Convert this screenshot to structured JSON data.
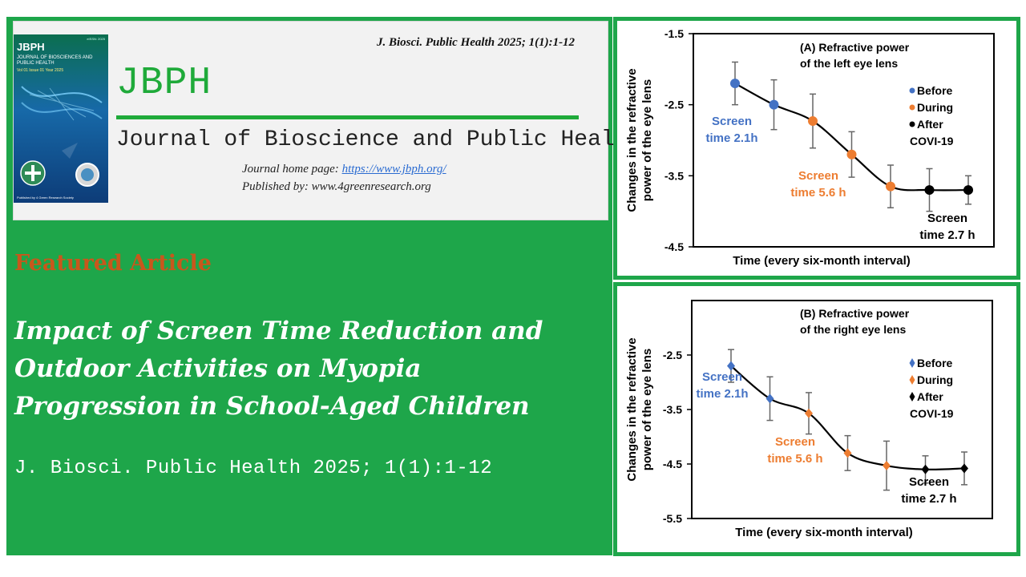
{
  "header": {
    "citation": "J. Biosci. Public Health 2025; 1(1):1-12",
    "logo_text": "JBPH",
    "journal_name": "Journal of Bioscience and Public Health",
    "homepage_label": "Journal home page: ",
    "homepage_url": "https://www.jbph.org/",
    "publisher": "Published by: www.4greenresearch.org",
    "cover": {
      "title": "JBPH",
      "subtitle": "JOURNAL OF BIOSCIENCES AND PUBLIC HEALTH",
      "issue": "Vol 01 Issue 01 Year 2025",
      "issn": "eISSN: 2025",
      "publisher": "Published by 4 Green Research Society"
    }
  },
  "article": {
    "featured_label": "Featured Article",
    "title_lines": [
      "Impact of Screen Time Reduction and",
      "Outdoor Activities on Myopia",
      "Progression in School-Aged Children"
    ],
    "citation": "J. Biosci. Public Health 2025; 1(1):1-12"
  },
  "colors": {
    "panel_green": "#1ea64a",
    "logo_green": "#1faa3a",
    "featured_orange": "#c8571c",
    "before_blue": "#4472c4",
    "during_orange": "#ed7d31",
    "after_black": "#000000"
  },
  "chart_data": [
    {
      "type": "line",
      "marker": "circle",
      "title_lines": [
        "(A) Refractive power",
        "of the left eye lens"
      ],
      "xlabel": "Time (every six-month interval)",
      "ylabel_lines": [
        "Changes in the refractive",
        "power of the eye lens"
      ],
      "ylim": [
        -4.5,
        -1.5
      ],
      "yticks": [
        -1.5,
        -2.5,
        -3.5,
        -4.5
      ],
      "x": [
        1,
        2,
        3,
        4,
        5,
        6,
        7
      ],
      "series": [
        {
          "values": [
            -2.2,
            -2.5,
            -2.73,
            -3.2,
            -3.65,
            -3.7,
            -3.7
          ],
          "errors": [
            0.3,
            0.35,
            0.38,
            0.32,
            0.3,
            0.3,
            0.2
          ]
        }
      ],
      "point_groups": [
        "before",
        "before",
        "during",
        "during",
        "during",
        "after",
        "after"
      ],
      "legend": [
        "Before",
        "During",
        "After",
        "COVI-19"
      ],
      "legend_position": "right",
      "annotations": [
        {
          "lines": [
            "Screen",
            "time 2.1h"
          ],
          "group": "before"
        },
        {
          "lines": [
            "Screen",
            "time 5.6 h"
          ],
          "group": "during"
        },
        {
          "lines": [
            "Screen",
            "time 2.7 h"
          ],
          "group": "after"
        }
      ]
    },
    {
      "type": "line",
      "marker": "diamond",
      "title_lines": [
        "(B) Refractive power",
        "of the right eye lens"
      ],
      "xlabel": "Time (every six-month interval)",
      "ylabel_lines": [
        "Changes in the refractive",
        "power of the eye lens"
      ],
      "ylim": [
        -5.5,
        -1.5
      ],
      "yticks": [
        -2.5,
        -3.5,
        -4.5,
        -5.5
      ],
      "x": [
        1,
        2,
        3,
        4,
        5,
        6,
        7
      ],
      "series": [
        {
          "values": [
            -2.7,
            -3.3,
            -3.57,
            -4.3,
            -4.53,
            -4.6,
            -4.58
          ],
          "errors": [
            0.3,
            0.4,
            0.38,
            0.32,
            0.45,
            0.25,
            0.3
          ]
        }
      ],
      "point_groups": [
        "before",
        "before",
        "during",
        "during",
        "during",
        "after",
        "after"
      ],
      "legend": [
        "Before",
        "During",
        "After",
        "COVI-19"
      ],
      "legend_position": "right",
      "annotations": [
        {
          "lines": [
            "Screen",
            "time 2.1h"
          ],
          "group": "before"
        },
        {
          "lines": [
            "Screen",
            "time 5.6 h"
          ],
          "group": "during"
        },
        {
          "lines": [
            "Screen",
            "time 2.7 h"
          ],
          "group": "after"
        }
      ]
    }
  ]
}
